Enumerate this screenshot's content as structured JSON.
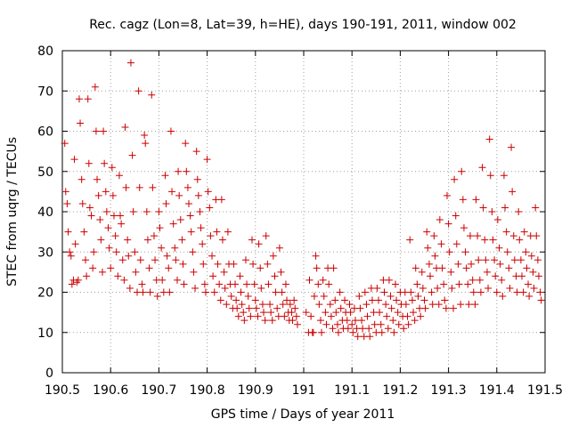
{
  "chart_data": {
    "type": "scatter",
    "title": "Rec. cagz (Lon=8, Lat=39, h=HE), days 190-191, 2011, window 002",
    "xlabel": "GPS time / Days of year 2011",
    "ylabel": "STEC from uqrg / TECUs",
    "xlim": [
      190.5,
      191.5
    ],
    "ylim": [
      0,
      80
    ],
    "xticks": [
      "190.5",
      "190.6",
      "190.7",
      "190.8",
      "190.9",
      "191",
      "191.1",
      "191.2",
      "191.3",
      "191.4",
      "191.5"
    ],
    "yticks": [
      "0",
      "10",
      "20",
      "30",
      "40",
      "50",
      "60",
      "70",
      "80"
    ],
    "grid": true,
    "marker": "plus",
    "color": "#cc0000",
    "points": [
      [
        190.505,
        57
      ],
      [
        190.507,
        45
      ],
      [
        190.51,
        42
      ],
      [
        190.512,
        35
      ],
      [
        190.515,
        30
      ],
      [
        190.518,
        29
      ],
      [
        190.52,
        22
      ],
      [
        190.523,
        23
      ],
      [
        190.525,
        53
      ],
      [
        190.527,
        32
      ],
      [
        190.53,
        22.5
      ],
      [
        190.533,
        23
      ],
      [
        190.535,
        68
      ],
      [
        190.537,
        62
      ],
      [
        190.54,
        48
      ],
      [
        190.542,
        42
      ],
      [
        190.545,
        35
      ],
      [
        190.548,
        28
      ],
      [
        190.55,
        24
      ],
      [
        190.553,
        68
      ],
      [
        190.555,
        52
      ],
      [
        190.557,
        41
      ],
      [
        190.56,
        39
      ],
      [
        190.563,
        26
      ],
      [
        190.565,
        30
      ],
      [
        190.568,
        71
      ],
      [
        190.57,
        60
      ],
      [
        190.572,
        48
      ],
      [
        190.575,
        44
      ],
      [
        190.578,
        38
      ],
      [
        190.58,
        33
      ],
      [
        190.583,
        25
      ],
      [
        190.585,
        60
      ],
      [
        190.587,
        52
      ],
      [
        190.59,
        45
      ],
      [
        190.592,
        40
      ],
      [
        190.595,
        36
      ],
      [
        190.597,
        31
      ],
      [
        190.6,
        26
      ],
      [
        190.603,
        51
      ],
      [
        190.605,
        44
      ],
      [
        190.607,
        39
      ],
      [
        190.61,
        34
      ],
      [
        190.612,
        30
      ],
      [
        190.615,
        24
      ],
      [
        190.618,
        49
      ],
      [
        190.62,
        39
      ],
      [
        190.622,
        37
      ],
      [
        190.625,
        28
      ],
      [
        190.628,
        23
      ],
      [
        190.63,
        61
      ],
      [
        190.632,
        46
      ],
      [
        190.635,
        33
      ],
      [
        190.637,
        29
      ],
      [
        190.64,
        21
      ],
      [
        190.642,
        77
      ],
      [
        190.645,
        54
      ],
      [
        190.647,
        40
      ],
      [
        190.65,
        30
      ],
      [
        190.652,
        25
      ],
      [
        190.655,
        20
      ],
      [
        190.658,
        70
      ],
      [
        190.66,
        46
      ],
      [
        190.662,
        28
      ],
      [
        190.665,
        22
      ],
      [
        190.667,
        20
      ],
      [
        190.67,
        59
      ],
      [
        190.672,
        57
      ],
      [
        190.675,
        40
      ],
      [
        190.677,
        33
      ],
      [
        190.68,
        26
      ],
      [
        190.682,
        20
      ],
      [
        190.685,
        69
      ],
      [
        190.687,
        46
      ],
      [
        190.69,
        34
      ],
      [
        190.692,
        28
      ],
      [
        190.695,
        23
      ],
      [
        190.697,
        19
      ],
      [
        190.7,
        40
      ],
      [
        190.702,
        36
      ],
      [
        190.705,
        31
      ],
      [
        190.707,
        23
      ],
      [
        190.71,
        20
      ],
      [
        190.713,
        49
      ],
      [
        190.715,
        42
      ],
      [
        190.717,
        29
      ],
      [
        190.72,
        26
      ],
      [
        190.722,
        20
      ],
      [
        190.725,
        60
      ],
      [
        190.727,
        45
      ],
      [
        190.73,
        37
      ],
      [
        190.733,
        31
      ],
      [
        190.735,
        28
      ],
      [
        190.738,
        23
      ],
      [
        190.74,
        50
      ],
      [
        190.742,
        44
      ],
      [
        190.745,
        38
      ],
      [
        190.748,
        33
      ],
      [
        190.75,
        27
      ],
      [
        190.752,
        22
      ],
      [
        190.755,
        57
      ],
      [
        190.757,
        50
      ],
      [
        190.76,
        46
      ],
      [
        190.762,
        42
      ],
      [
        190.765,
        39
      ],
      [
        190.767,
        35
      ],
      [
        190.77,
        30
      ],
      [
        190.772,
        25
      ],
      [
        190.775,
        21
      ],
      [
        190.778,
        55
      ],
      [
        190.78,
        48
      ],
      [
        190.782,
        44
      ],
      [
        190.785,
        40
      ],
      [
        190.787,
        36
      ],
      [
        190.79,
        32
      ],
      [
        190.792,
        27
      ],
      [
        190.795,
        22
      ],
      [
        190.797,
        20
      ],
      [
        190.8,
        53
      ],
      [
        190.802,
        45
      ],
      [
        190.805,
        41
      ],
      [
        190.807,
        34
      ],
      [
        190.81,
        29
      ],
      [
        190.812,
        24
      ],
      [
        190.815,
        20
      ],
      [
        190.818,
        43
      ],
      [
        190.82,
        35
      ],
      [
        190.822,
        27
      ],
      [
        190.825,
        22
      ],
      [
        190.828,
        18
      ],
      [
        190.83,
        43
      ],
      [
        190.832,
        33
      ],
      [
        190.835,
        25
      ],
      [
        190.837,
        21
      ],
      [
        190.84,
        17
      ],
      [
        190.843,
        35
      ],
      [
        190.845,
        27
      ],
      [
        190.848,
        22
      ],
      [
        190.85,
        19
      ],
      [
        190.853,
        16
      ],
      [
        190.855,
        27
      ],
      [
        190.858,
        22
      ],
      [
        190.86,
        18
      ],
      [
        190.862,
        16
      ],
      [
        190.865,
        14
      ],
      [
        190.868,
        24
      ],
      [
        190.87,
        20
      ],
      [
        190.872,
        17
      ],
      [
        190.875,
        15
      ],
      [
        190.877,
        13
      ],
      [
        190.88,
        28
      ],
      [
        190.882,
        22
      ],
      [
        190.885,
        19
      ],
      [
        190.887,
        16
      ],
      [
        190.89,
        14
      ],
      [
        190.893,
        33
      ],
      [
        190.895,
        27
      ],
      [
        190.898,
        22
      ],
      [
        190.9,
        18
      ],
      [
        190.902,
        16
      ],
      [
        190.905,
        14
      ],
      [
        190.907,
        32
      ],
      [
        190.91,
        26
      ],
      [
        190.912,
        21
      ],
      [
        190.915,
        17
      ],
      [
        190.917,
        15
      ],
      [
        190.92,
        13
      ],
      [
        190.922,
        34
      ],
      [
        190.925,
        27
      ],
      [
        190.927,
        22
      ],
      [
        190.93,
        17
      ],
      [
        190.932,
        15
      ],
      [
        190.935,
        13
      ],
      [
        190.937,
        29
      ],
      [
        190.94,
        24
      ],
      [
        190.942,
        20
      ],
      [
        190.945,
        16
      ],
      [
        190.948,
        14
      ],
      [
        190.95,
        31
      ],
      [
        190.953,
        25
      ],
      [
        190.955,
        20
      ],
      [
        190.957,
        17
      ],
      [
        190.96,
        14
      ],
      [
        190.963,
        22
      ],
      [
        190.965,
        18
      ],
      [
        190.968,
        15
      ],
      [
        190.97,
        13
      ],
      [
        190.972,
        17
      ],
      [
        190.975,
        15
      ],
      [
        190.977,
        13
      ],
      [
        190.98,
        18
      ],
      [
        190.982,
        16
      ],
      [
        190.985,
        14
      ],
      [
        190.987,
        12
      ],
      [
        191.005,
        15
      ],
      [
        191.01,
        10
      ],
      [
        191.012,
        23
      ],
      [
        191.015,
        14
      ],
      [
        191.018,
        10
      ],
      [
        191.02,
        10
      ],
      [
        191.022,
        19
      ],
      [
        191.025,
        29
      ],
      [
        191.027,
        26
      ],
      [
        191.03,
        22
      ],
      [
        191.032,
        17
      ],
      [
        191.035,
        13
      ],
      [
        191.037,
        10
      ],
      [
        191.04,
        23
      ],
      [
        191.042,
        19
      ],
      [
        191.045,
        15
      ],
      [
        191.047,
        12
      ],
      [
        191.05,
        26
      ],
      [
        191.052,
        22
      ],
      [
        191.055,
        17
      ],
      [
        191.057,
        14
      ],
      [
        191.06,
        11
      ],
      [
        191.062,
        26
      ],
      [
        191.065,
        18
      ],
      [
        191.067,
        15
      ],
      [
        191.07,
        12
      ],
      [
        191.072,
        10
      ],
      [
        191.075,
        20
      ],
      [
        191.077,
        16
      ],
      [
        191.08,
        13
      ],
      [
        191.082,
        11
      ],
      [
        191.085,
        18
      ],
      [
        191.087,
        15
      ],
      [
        191.09,
        13
      ],
      [
        191.092,
        11
      ],
      [
        191.095,
        17
      ],
      [
        191.097,
        15
      ],
      [
        191.1,
        12
      ],
      [
        191.102,
        10
      ],
      [
        191.105,
        16
      ],
      [
        191.107,
        13
      ],
      [
        191.11,
        11
      ],
      [
        191.112,
        9
      ],
      [
        191.115,
        19
      ],
      [
        191.117,
        16
      ],
      [
        191.12,
        13
      ],
      [
        191.122,
        11
      ],
      [
        191.125,
        9
      ],
      [
        191.127,
        20
      ],
      [
        191.13,
        17
      ],
      [
        191.132,
        14
      ],
      [
        191.135,
        11
      ],
      [
        191.137,
        9
      ],
      [
        191.14,
        21
      ],
      [
        191.142,
        18
      ],
      [
        191.145,
        15
      ],
      [
        191.147,
        12
      ],
      [
        191.15,
        10
      ],
      [
        191.152,
        21
      ],
      [
        191.155,
        18
      ],
      [
        191.157,
        15
      ],
      [
        191.16,
        12
      ],
      [
        191.162,
        10
      ],
      [
        191.165,
        23
      ],
      [
        191.167,
        20
      ],
      [
        191.17,
        17
      ],
      [
        191.172,
        14
      ],
      [
        191.175,
        11
      ],
      [
        191.177,
        23
      ],
      [
        191.18,
        19
      ],
      [
        191.182,
        16
      ],
      [
        191.185,
        13
      ],
      [
        191.187,
        10
      ],
      [
        191.19,
        22
      ],
      [
        191.192,
        18
      ],
      [
        191.195,
        15
      ],
      [
        191.197,
        12
      ],
      [
        191.2,
        20
      ],
      [
        191.202,
        17
      ],
      [
        191.205,
        14
      ],
      [
        191.207,
        11
      ],
      [
        191.21,
        20
      ],
      [
        191.212,
        17
      ],
      [
        191.215,
        14
      ],
      [
        191.217,
        12
      ],
      [
        191.22,
        33
      ],
      [
        191.222,
        20
      ],
      [
        191.225,
        18
      ],
      [
        191.227,
        15
      ],
      [
        191.23,
        13
      ],
      [
        191.232,
        26
      ],
      [
        191.235,
        22
      ],
      [
        191.237,
        19
      ],
      [
        191.24,
        16
      ],
      [
        191.242,
        14
      ],
      [
        191.245,
        25
      ],
      [
        191.247,
        21
      ],
      [
        191.25,
        18
      ],
      [
        191.252,
        16
      ],
      [
        191.255,
        35
      ],
      [
        191.257,
        31
      ],
      [
        191.26,
        27
      ],
      [
        191.262,
        24
      ],
      [
        191.265,
        20
      ],
      [
        191.267,
        17
      ],
      [
        191.27,
        34
      ],
      [
        191.272,
        29
      ],
      [
        191.275,
        26
      ],
      [
        191.277,
        21
      ],
      [
        191.28,
        17
      ],
      [
        191.282,
        38
      ],
      [
        191.285,
        32
      ],
      [
        191.287,
        26
      ],
      [
        191.29,
        22
      ],
      [
        191.292,
        18
      ],
      [
        191.295,
        16
      ],
      [
        191.297,
        44
      ],
      [
        191.3,
        37
      ],
      [
        191.302,
        30
      ],
      [
        191.305,
        25
      ],
      [
        191.307,
        21
      ],
      [
        191.31,
        16
      ],
      [
        191.312,
        48
      ],
      [
        191.315,
        39
      ],
      [
        191.317,
        32
      ],
      [
        191.32,
        27
      ],
      [
        191.322,
        22
      ],
      [
        191.325,
        17
      ],
      [
        191.327,
        50
      ],
      [
        191.33,
        43
      ],
      [
        191.332,
        36
      ],
      [
        191.335,
        30
      ],
      [
        191.337,
        26
      ],
      [
        191.34,
        22
      ],
      [
        191.342,
        17
      ],
      [
        191.345,
        34
      ],
      [
        191.347,
        27
      ],
      [
        191.35,
        23
      ],
      [
        191.352,
        20
      ],
      [
        191.355,
        17
      ],
      [
        191.357,
        43
      ],
      [
        191.36,
        34
      ],
      [
        191.362,
        28
      ],
      [
        191.365,
        23
      ],
      [
        191.367,
        20
      ],
      [
        191.37,
        51
      ],
      [
        191.372,
        41
      ],
      [
        191.375,
        33
      ],
      [
        191.377,
        28
      ],
      [
        191.38,
        25
      ],
      [
        191.382,
        21
      ],
      [
        191.385,
        58
      ],
      [
        191.387,
        49
      ],
      [
        191.39,
        40
      ],
      [
        191.392,
        33
      ],
      [
        191.395,
        28
      ],
      [
        191.397,
        24
      ],
      [
        191.4,
        20
      ],
      [
        191.402,
        38
      ],
      [
        191.405,
        31
      ],
      [
        191.407,
        27
      ],
      [
        191.41,
        23
      ],
      [
        191.412,
        19
      ],
      [
        191.415,
        49
      ],
      [
        191.417,
        41
      ],
      [
        191.42,
        35
      ],
      [
        191.422,
        30
      ],
      [
        191.425,
        26
      ],
      [
        191.427,
        21
      ],
      [
        191.43,
        56
      ],
      [
        191.432,
        45
      ],
      [
        191.435,
        34
      ],
      [
        191.437,
        28
      ],
      [
        191.44,
        24
      ],
      [
        191.442,
        20
      ],
      [
        191.445,
        40
      ],
      [
        191.447,
        33
      ],
      [
        191.45,
        28
      ],
      [
        191.452,
        24
      ],
      [
        191.455,
        20
      ],
      [
        191.457,
        35
      ],
      [
        191.46,
        30
      ],
      [
        191.462,
        26
      ],
      [
        191.465,
        22
      ],
      [
        191.467,
        19
      ],
      [
        191.47,
        34
      ],
      [
        191.472,
        29
      ],
      [
        191.475,
        25
      ],
      [
        191.477,
        21
      ],
      [
        191.48,
        41
      ],
      [
        191.482,
        34
      ],
      [
        191.485,
        28
      ],
      [
        191.487,
        24
      ],
      [
        191.49,
        20
      ],
      [
        191.492,
        18
      ]
    ]
  }
}
